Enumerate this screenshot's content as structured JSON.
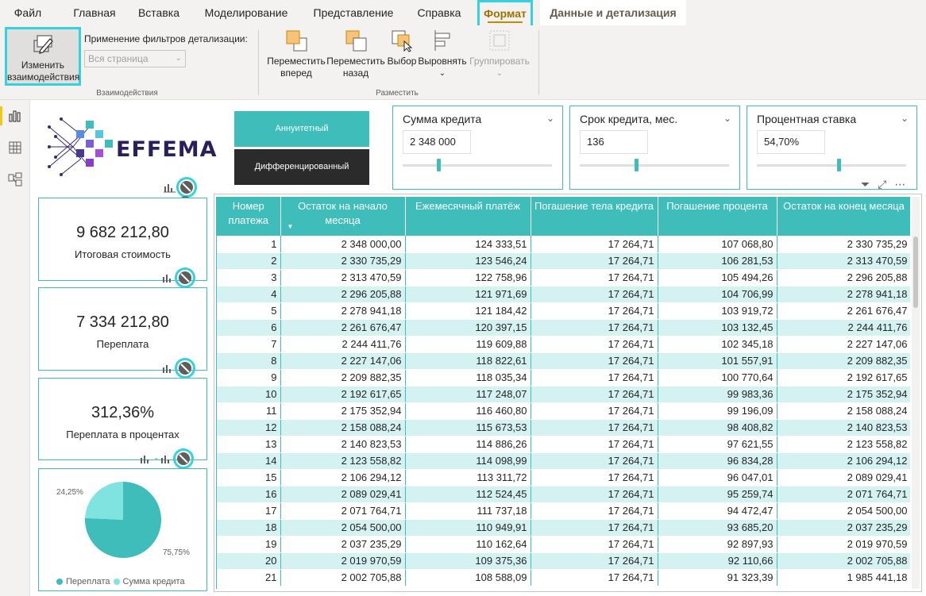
{
  "tabs": [
    "Файл",
    "Главная",
    "Вставка",
    "Моделирование",
    "Представление",
    "Справка",
    "Формат",
    "Данные и детализация"
  ],
  "ribbon": {
    "edit_interactions": "Изменить взаимодействия",
    "filter_label": "Применение фильтров детализации:",
    "filter_select": "Вся страница",
    "group_interactions": "Взаимодействия",
    "bring_forward": "Переместить вперед",
    "send_backward": "Переместить назад",
    "selection": "Выбор",
    "align": "Выровнять",
    "group": "Группировать",
    "group_arrange": "Разместить"
  },
  "logo": {
    "text": "EFFEMA"
  },
  "buttons": {
    "annuity": "Аннуитетный",
    "differentiated": "Дифференцированный"
  },
  "slicers": [
    {
      "title": "Сумма кредита",
      "value": "2 348 000",
      "level": 0.24
    },
    {
      "title": "Срок кредита, мес.",
      "value": "136",
      "level": 0.38
    },
    {
      "title": "Процентная ставка",
      "value": "54,70%",
      "level": 0.55
    }
  ],
  "cards": [
    {
      "value": "9 682 212,80",
      "label": "Итоговая стоимость"
    },
    {
      "value": "7 334 212,80",
      "label": "Переплата"
    },
    {
      "value": "312,36%",
      "label": "Переплата в процентах"
    }
  ],
  "pie": {
    "labels": [
      "24,25%",
      "75,75%"
    ],
    "legend": [
      "Переплата",
      "Сумма кредита"
    ],
    "colors": {
      "overpay": "#3ebdba",
      "principal": "#7fe3e0"
    }
  },
  "colors": {
    "accent": "#3ebdba",
    "highlight": "#34d1de",
    "format_tab": "#9b7100"
  },
  "table": {
    "headers": [
      "Номер платежа",
      "Остаток на начало месяца",
      "Ежемесячный платёж",
      "Погашение тела кредита",
      "Погашение процента",
      "Остаток на конец месяца"
    ],
    "rows": [
      [
        "1",
        "2 348 000,00",
        "124 333,51",
        "17 264,71",
        "107 068,80",
        "2 330 735,29"
      ],
      [
        "2",
        "2 330 735,29",
        "123 546,24",
        "17 264,71",
        "106 281,53",
        "2 313 470,59"
      ],
      [
        "3",
        "2 313 470,59",
        "122 758,96",
        "17 264,71",
        "105 494,26",
        "2 296 205,88"
      ],
      [
        "4",
        "2 296 205,88",
        "121 971,69",
        "17 264,71",
        "104 706,99",
        "2 278 941,18"
      ],
      [
        "5",
        "2 278 941,18",
        "121 184,42",
        "17 264,71",
        "103 919,72",
        "2 261 676,47"
      ],
      [
        "6",
        "2 261 676,47",
        "120 397,15",
        "17 264,71",
        "103 132,45",
        "2 244 411,76"
      ],
      [
        "7",
        "2 244 411,76",
        "119 609,88",
        "17 264,71",
        "102 345,18",
        "2 227 147,06"
      ],
      [
        "8",
        "2 227 147,06",
        "118 822,61",
        "17 264,71",
        "101 557,91",
        "2 209 882,35"
      ],
      [
        "9",
        "2 209 882,35",
        "118 035,34",
        "17 264,71",
        "100 770,64",
        "2 192 617,65"
      ],
      [
        "10",
        "2 192 617,65",
        "117 248,07",
        "17 264,71",
        "99 983,36",
        "2 175 352,94"
      ],
      [
        "11",
        "2 175 352,94",
        "116 460,80",
        "17 264,71",
        "99 196,09",
        "2 158 088,24"
      ],
      [
        "12",
        "2 158 088,24",
        "115 673,53",
        "17 264,71",
        "98 408,82",
        "2 140 823,53"
      ],
      [
        "13",
        "2 140 823,53",
        "114 886,26",
        "17 264,71",
        "97 621,55",
        "2 123 558,82"
      ],
      [
        "14",
        "2 123 558,82",
        "114 098,99",
        "17 264,71",
        "96 834,28",
        "2 106 294,12"
      ],
      [
        "15",
        "2 106 294,12",
        "113 311,72",
        "17 264,71",
        "96 047,01",
        "2 089 029,41"
      ],
      [
        "16",
        "2 089 029,41",
        "112 524,45",
        "17 264,71",
        "95 259,74",
        "2 071 764,71"
      ],
      [
        "17",
        "2 071 764,71",
        "111 737,18",
        "17 264,71",
        "94 472,47",
        "2 054 500,00"
      ],
      [
        "18",
        "2 054 500,00",
        "110 949,91",
        "17 264,71",
        "93 685,20",
        "2 037 235,29"
      ],
      [
        "19",
        "2 037 235,29",
        "110 162,64",
        "17 264,71",
        "92 897,93",
        "2 019 970,59"
      ],
      [
        "20",
        "2 019 970,59",
        "109 375,36",
        "17 264,71",
        "92 110,66",
        "2 002 705,88"
      ],
      [
        "21",
        "2 002 705,88",
        "108 588,09",
        "17 264,71",
        "91 323,39",
        "1 985 441,18"
      ]
    ]
  }
}
